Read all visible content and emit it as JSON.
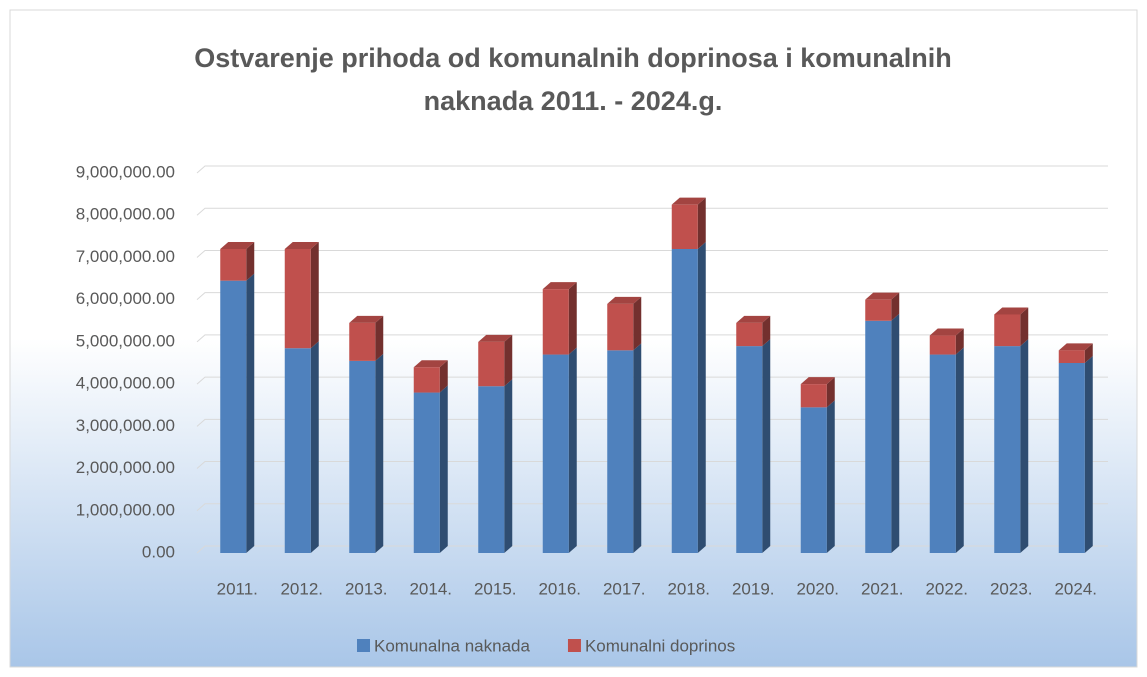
{
  "chart_data": {
    "type": "bar",
    "stacked": true,
    "title": "Ostvarenje prihoda od komunalnih doprinosa i komunalnih naknada 2011. - 2024.g.",
    "categories": [
      "2011.",
      "2012.",
      "2013.",
      "2014.",
      "2015.",
      "2016.",
      "2017.",
      "2018.",
      "2019.",
      "2020.",
      "2021.",
      "2022.",
      "2023.",
      "2024."
    ],
    "series": [
      {
        "name": "Komunalna naknada",
        "color": "#4f81bd",
        "values": [
          6450000,
          4850000,
          4550000,
          3800000,
          3950000,
          4700000,
          4800000,
          7200000,
          4900000,
          3450000,
          5500000,
          4700000,
          4900000,
          4500000
        ]
      },
      {
        "name": "Komunalni doprinos",
        "color": "#c0504d",
        "values": [
          750000,
          2350000,
          900000,
          600000,
          1050000,
          1550000,
          1100000,
          1050000,
          550000,
          550000,
          500000,
          450000,
          750000,
          300000
        ]
      }
    ],
    "ylim": [
      0,
      9000000
    ],
    "yticks": [
      {
        "value": 0,
        "label": "0.00"
      },
      {
        "value": 1000000,
        "label": "1,000,000.00"
      },
      {
        "value": 2000000,
        "label": "2,000,000.00"
      },
      {
        "value": 3000000,
        "label": "3,000,000.00"
      },
      {
        "value": 4000000,
        "label": "4,000,000.00"
      },
      {
        "value": 5000000,
        "label": "5,000,000.00"
      },
      {
        "value": 6000000,
        "label": "6,000,000.00"
      },
      {
        "value": 7000000,
        "label": "7,000,000.00"
      },
      {
        "value": 8000000,
        "label": "8,000,000.00"
      },
      {
        "value": 9000000,
        "label": "9,000,000.00"
      }
    ],
    "grid": true,
    "legend": "bottom"
  }
}
